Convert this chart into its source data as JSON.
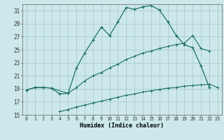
{
  "xlabel": "Humidex (Indice chaleur)",
  "bg_color": "#cce8ea",
  "grid_color": "#aacccc",
  "line_color": "#1a6e6a",
  "xlim": [
    -0.5,
    23.5
  ],
  "ylim": [
    15,
    32
  ],
  "xticks": [
    0,
    1,
    2,
    3,
    4,
    5,
    6,
    7,
    8,
    9,
    10,
    11,
    12,
    13,
    14,
    15,
    16,
    17,
    18,
    19,
    20,
    21,
    22,
    23
  ],
  "yticks": [
    15,
    17,
    19,
    21,
    23,
    25,
    27,
    29,
    31
  ],
  "line1_x": [
    0,
    1,
    2,
    3,
    4,
    5,
    6,
    7,
    8,
    9,
    10,
    11,
    12,
    13,
    14,
    15,
    16,
    17,
    18,
    19,
    20,
    21,
    22
  ],
  "line1_y": [
    18.8,
    19.2,
    19.2,
    19.1,
    18.2,
    18.3,
    22.2,
    24.5,
    26.5,
    28.5,
    27.2,
    29.3,
    31.5,
    31.2,
    31.6,
    31.8,
    31.1,
    29.3,
    27.2,
    25.8,
    25.3,
    22.5,
    19.2
  ],
  "line2_x": [
    0,
    1,
    2,
    3,
    5,
    6,
    7,
    8,
    9,
    10,
    11,
    12,
    13,
    14,
    15,
    16,
    17,
    18,
    19,
    20,
    21,
    22
  ],
  "line2_y": [
    18.8,
    19.2,
    19.2,
    19.1,
    18.3,
    19.2,
    20.2,
    21.0,
    21.5,
    22.2,
    22.8,
    23.5,
    24.0,
    24.5,
    24.8,
    25.2,
    25.5,
    25.8,
    26.0,
    27.2,
    25.2,
    24.8
  ],
  "line3_x": [
    4,
    5,
    6,
    7,
    8,
    9,
    10,
    11,
    12,
    13,
    14,
    15,
    16,
    17,
    18,
    19,
    20,
    21,
    22,
    23
  ],
  "line3_y": [
    15.5,
    15.8,
    16.2,
    16.5,
    16.8,
    17.1,
    17.4,
    17.7,
    18.0,
    18.2,
    18.5,
    18.7,
    18.9,
    19.1,
    19.2,
    19.4,
    19.5,
    19.6,
    19.7,
    19.2
  ]
}
